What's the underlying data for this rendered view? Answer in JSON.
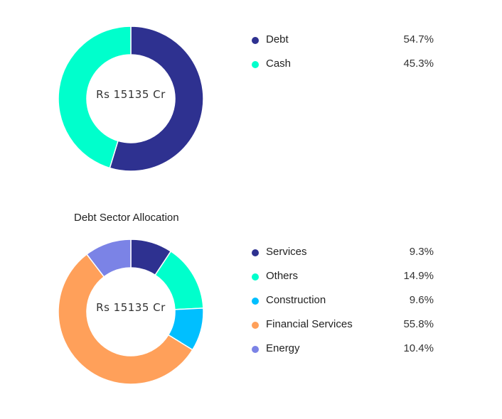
{
  "chart_data": [
    {
      "type": "pie",
      "center_label": "Rs 15135 Cr",
      "categories": [
        "Debt",
        "Cash"
      ],
      "values": [
        54.7,
        45.3
      ],
      "colors": [
        "#2e3190",
        "#00ffcc"
      ]
    },
    {
      "type": "pie",
      "title": "Debt Sector Allocation",
      "center_label": "Rs 15135 Cr",
      "categories": [
        "Services",
        "Others",
        "Construction",
        "Financial Services",
        "Energy"
      ],
      "values": [
        9.3,
        14.9,
        9.6,
        55.8,
        10.4
      ],
      "colors": [
        "#2e3190",
        "#00ffcc",
        "#00bfff",
        "#ffa05a",
        "#7b83e6"
      ]
    }
  ]
}
